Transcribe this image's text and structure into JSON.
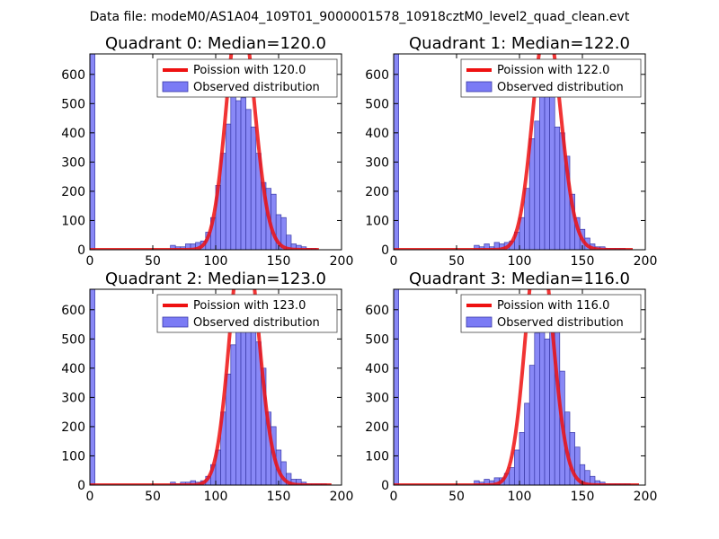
{
  "figure": {
    "suptitle": "Data file: modeM0/AS1A04_109T01_9000001578_10918cztM0_level2_quad_clean.evt"
  },
  "colors": {
    "bar_fill": "#7b7bf5",
    "bar_edge": "#3a3aa8",
    "poisson_line": "#ee1111"
  },
  "chart_data": [
    {
      "type": "bar",
      "title": "Quadrant 0: Median=120.0",
      "xlim": [
        0,
        200
      ],
      "ylim": [
        0,
        670
      ],
      "xticks": [
        0,
        50,
        100,
        150,
        200
      ],
      "yticks": [
        0,
        100,
        200,
        300,
        400,
        500,
        600
      ],
      "bin_width": 4,
      "legend": [
        "Poission with 120.0",
        "Observed distribution"
      ],
      "legend_position": "top-right",
      "histogram": {
        "name": "Observed distribution",
        "bins": [
          0,
          4,
          8,
          12,
          16,
          20,
          24,
          28,
          32,
          36,
          40,
          44,
          48,
          52,
          56,
          60,
          64,
          68,
          72,
          76,
          80,
          84,
          88,
          92,
          96,
          100,
          104,
          108,
          112,
          116,
          120,
          124,
          128,
          132,
          136,
          140,
          144,
          148,
          152,
          156,
          160,
          164,
          168,
          172,
          176,
          180
        ],
        "counts": [
          670,
          0,
          0,
          0,
          0,
          0,
          0,
          0,
          0,
          0,
          0,
          0,
          0,
          0,
          0,
          0,
          15,
          10,
          10,
          20,
          20,
          25,
          30,
          60,
          110,
          220,
          330,
          430,
          540,
          510,
          520,
          480,
          420,
          330,
          230,
          210,
          190,
          120,
          110,
          50,
          20,
          15,
          10,
          5,
          5,
          0
        ]
      },
      "poisson": {
        "name": "Poission with 120.0",
        "mean": 120,
        "x_range": [
          0,
          182
        ]
      }
    },
    {
      "type": "bar",
      "title": "Quadrant 1: Median=122.0",
      "xlim": [
        0,
        200
      ],
      "ylim": [
        0,
        670
      ],
      "xticks": [
        0,
        50,
        100,
        150,
        200
      ],
      "yticks": [
        0,
        100,
        200,
        300,
        400,
        500,
        600
      ],
      "bin_width": 4,
      "legend": [
        "Poission with 122.0",
        "Observed distribution"
      ],
      "legend_position": "top-right",
      "histogram": {
        "name": "Observed distribution",
        "bins": [
          0,
          4,
          8,
          12,
          16,
          20,
          24,
          28,
          32,
          36,
          40,
          44,
          48,
          52,
          56,
          60,
          64,
          68,
          72,
          76,
          80,
          84,
          88,
          92,
          96,
          100,
          104,
          108,
          112,
          116,
          120,
          124,
          128,
          132,
          136,
          140,
          144,
          148,
          152,
          156,
          160,
          164,
          168,
          172,
          176,
          180,
          184
        ],
        "counts": [
          670,
          0,
          0,
          0,
          0,
          0,
          0,
          0,
          0,
          0,
          0,
          0,
          0,
          0,
          0,
          0,
          15,
          10,
          20,
          10,
          25,
          20,
          25,
          30,
          60,
          110,
          210,
          380,
          440,
          560,
          610,
          570,
          420,
          400,
          320,
          190,
          110,
          70,
          40,
          20,
          10,
          10,
          5,
          5,
          5,
          5,
          0
        ]
      },
      "poisson": {
        "name": "Poission with 122.0",
        "mean": 122,
        "x_range": [
          0,
          190
        ]
      }
    },
    {
      "type": "bar",
      "title": "Quadrant 2: Median=123.0",
      "xlim": [
        0,
        200
      ],
      "ylim": [
        0,
        670
      ],
      "xticks": [
        0,
        50,
        100,
        150,
        200
      ],
      "yticks": [
        0,
        100,
        200,
        300,
        400,
        500,
        600
      ],
      "bin_width": 4,
      "legend": [
        "Poission with 123.0",
        "Observed distribution"
      ],
      "legend_position": "top-right",
      "histogram": {
        "name": "Observed distribution",
        "bins": [
          0,
          4,
          8,
          12,
          16,
          20,
          24,
          28,
          32,
          36,
          40,
          44,
          48,
          52,
          56,
          60,
          64,
          68,
          72,
          76,
          80,
          84,
          88,
          92,
          96,
          100,
          104,
          108,
          112,
          116,
          120,
          124,
          128,
          132,
          136,
          140,
          144,
          148,
          152,
          156,
          160,
          164,
          168,
          172,
          176,
          180,
          184,
          188
        ],
        "counts": [
          670,
          0,
          0,
          0,
          0,
          0,
          0,
          0,
          0,
          0,
          0,
          0,
          0,
          0,
          0,
          0,
          10,
          5,
          10,
          10,
          15,
          10,
          15,
          30,
          70,
          120,
          250,
          380,
          480,
          550,
          620,
          650,
          620,
          490,
          400,
          250,
          200,
          120,
          80,
          40,
          20,
          20,
          10,
          5,
          5,
          5,
          5,
          0
        ]
      },
      "poisson": {
        "name": "Poission with 123.0",
        "mean": 123,
        "x_range": [
          0,
          192
        ]
      }
    },
    {
      "type": "bar",
      "title": "Quadrant 3: Median=116.0",
      "xlim": [
        0,
        200
      ],
      "ylim": [
        0,
        670
      ],
      "xticks": [
        0,
        50,
        100,
        150,
        200
      ],
      "yticks": [
        0,
        100,
        200,
        300,
        400,
        500,
        600
      ],
      "bin_width": 4,
      "legend": [
        "Poission with 116.0",
        "Observed distribution"
      ],
      "legend_position": "top-right",
      "histogram": {
        "name": "Observed distribution",
        "bins": [
          0,
          4,
          8,
          12,
          16,
          20,
          24,
          28,
          32,
          36,
          40,
          44,
          48,
          52,
          56,
          60,
          64,
          68,
          72,
          76,
          80,
          84,
          88,
          92,
          96,
          100,
          104,
          108,
          112,
          116,
          120,
          124,
          128,
          132,
          136,
          140,
          144,
          148,
          152,
          156,
          160,
          164,
          168,
          172,
          176,
          180,
          184,
          188
        ],
        "counts": [
          670,
          0,
          0,
          0,
          0,
          0,
          0,
          0,
          0,
          0,
          0,
          0,
          0,
          0,
          0,
          0,
          15,
          10,
          20,
          15,
          25,
          25,
          40,
          60,
          120,
          180,
          280,
          410,
          520,
          580,
          500,
          590,
          550,
          390,
          250,
          180,
          130,
          70,
          50,
          30,
          15,
          10,
          5,
          5,
          5,
          5,
          5,
          0
        ]
      },
      "poisson": {
        "name": "Poission with 116.0",
        "mean": 116,
        "x_range": [
          0,
          195
        ]
      }
    }
  ]
}
